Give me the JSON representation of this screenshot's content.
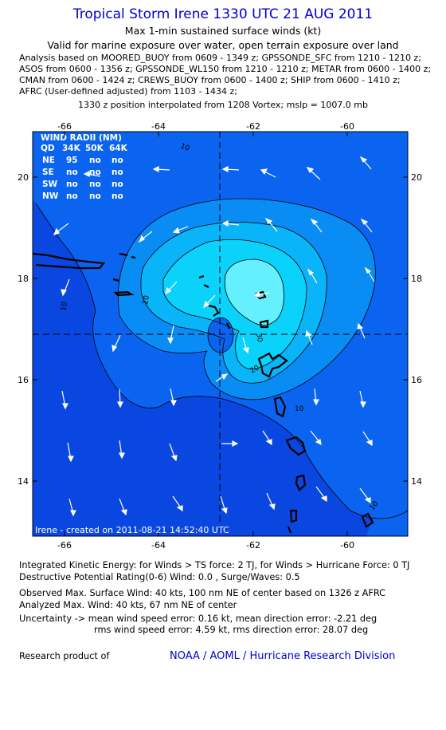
{
  "header": {
    "title": "Tropical Storm Irene 1330 UTC 21 AUG 2011",
    "subtitle1": "Max 1-min sustained surface winds (kt)",
    "subtitle2": "Valid for marine exposure over water, open terrain exposure over land",
    "analysis_lines": [
      "Analysis based on MOORED_BUOY from 0609 - 1349 z; GPSSONDE_SFC from 1210 - 1210 z;",
      "ASOS from 0600 - 1356 z; GPSSONDE_WL150 from 1210 - 1210 z; METAR from 0600 - 1400 z;",
      "CMAN from 0600 - 1424 z; CREWS_BUOY from 0600 - 1400 z; SHIP from 0600 - 1410 z;",
      "AFRC (User-defined adjusted) from 1103 - 1434 z;"
    ],
    "position_line": "1330 z position interpolated from 1208 Vortex; mslp = 1007.0 mb"
  },
  "map": {
    "lon_labels": [
      "-66",
      "-64",
      "-62",
      "-60"
    ],
    "lat_labels": [
      "20",
      "18",
      "16",
      "14"
    ],
    "contour_labels": [
      "10",
      "10",
      "10",
      "20",
      "20",
      "30",
      "10"
    ],
    "wind_radii": {
      "title": "WIND RADII (NM)",
      "header": [
        "QD",
        "34K",
        "50K",
        "64K"
      ],
      "rows": [
        [
          "NE",
          "95",
          "no",
          "no"
        ],
        [
          "SE",
          "no",
          "no",
          "no"
        ],
        [
          "SW",
          "no",
          "no",
          "no"
        ],
        [
          "NW",
          "no",
          "no",
          "no"
        ]
      ]
    },
    "created": "Irene - created on 2011-08-21 14:52:40 UTC",
    "colors": {
      "ocean_low": "#0a46e0",
      "band_10": "#0a64f0",
      "band_20": "#0a8cf5",
      "band_30": "#0ab4f8",
      "band_35": "#0ad2fa",
      "band_40": "#64f0ff",
      "land": "#000000",
      "arrows": "#ffffff"
    }
  },
  "footer": {
    "ike_line": "Integrated Kinetic Energy:  for Winds > TS force: 2 TJ,  for Winds > Hurricane Force: 0 TJ",
    "dpr_line": "Destructive Potential Rating(0-6)   Wind: 0.0 , Surge/Waves: 0.5",
    "obs_line": "Observed Max. Surface Wind: 40 kts, 100 nm NE of center based on 1326 z AFRC",
    "ana_line": "Analyzed Max. Wind: 40 kts, 67 nm NE of center",
    "unc_line1": "Uncertainty -> mean wind speed error: 0.16 kt,   mean direction error:  -2.21 deg",
    "unc_line2": "rms wind speed error: 4.59 kt,   rms direction error: 28.07 deg",
    "research": "Research product of",
    "org": "NOAA / AOML / Hurricane Research Division"
  }
}
